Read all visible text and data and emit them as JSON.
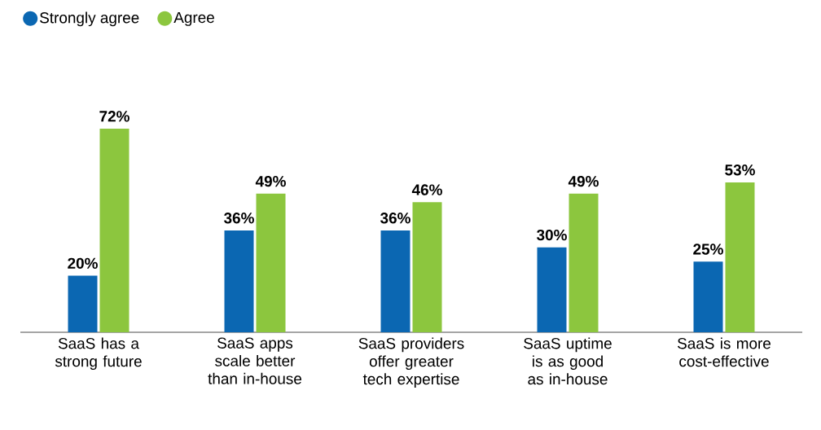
{
  "chart_data": {
    "type": "bar",
    "categories": [
      "SaaS has a strong future",
      "SaaS apps scale better than in-house",
      "SaaS providers offer greater tech expertise",
      "SaaS uptime is as good as in-house",
      "SaaS is more cost-effective"
    ],
    "series": [
      {
        "name": "Strongly agree",
        "color": "#0b67b2",
        "values": [
          20,
          36,
          36,
          30,
          25
        ],
        "value_labels": [
          "20%",
          "36%",
          "36%",
          "30%",
          "25%"
        ]
      },
      {
        "name": "Agree",
        "color": "#8cc63e",
        "values": [
          72,
          49,
          46,
          49,
          53
        ],
        "value_labels": [
          "72%",
          "49%",
          "46%",
          "49%",
          "53%"
        ]
      }
    ],
    "legend": "top left"
  }
}
